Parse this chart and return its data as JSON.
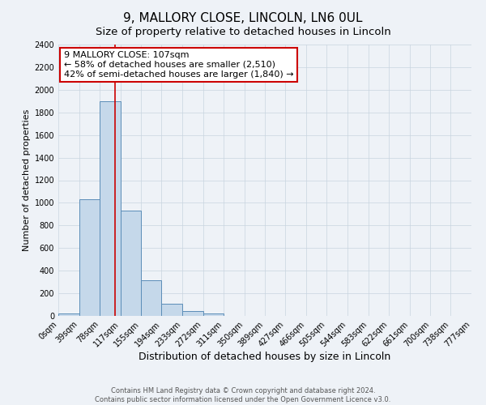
{
  "title": "9, MALLORY CLOSE, LINCOLN, LN6 0UL",
  "subtitle": "Size of property relative to detached houses in Lincoln",
  "xlabel": "Distribution of detached houses by size in Lincoln",
  "ylabel": "Number of detached properties",
  "footer_line1": "Contains HM Land Registry data © Crown copyright and database right 2024.",
  "footer_line2": "Contains public sector information licensed under the Open Government Licence v3.0.",
  "bin_edges": [
    0,
    39,
    78,
    117,
    155,
    194,
    233,
    272,
    311,
    350,
    389,
    427,
    466,
    505,
    544,
    583,
    622,
    661,
    700,
    738,
    777
  ],
  "bin_labels": [
    "0sqm",
    "39sqm",
    "78sqm",
    "117sqm",
    "155sqm",
    "194sqm",
    "233sqm",
    "272sqm",
    "311sqm",
    "350sqm",
    "389sqm",
    "427sqm",
    "466sqm",
    "505sqm",
    "544sqm",
    "583sqm",
    "622sqm",
    "661sqm",
    "700sqm",
    "738sqm",
    "777sqm"
  ],
  "bar_heights": [
    20,
    1030,
    1900,
    930,
    315,
    105,
    45,
    25,
    0,
    0,
    0,
    0,
    0,
    0,
    0,
    0,
    0,
    0,
    0,
    0
  ],
  "bar_color": "#c5d8ea",
  "bar_edge_color": "#5b8db8",
  "property_line_x": 107,
  "property_line_color": "#cc0000",
  "annotation_line1": "9 MALLORY CLOSE: 107sqm",
  "annotation_line2": "← 58% of detached houses are smaller (2,510)",
  "annotation_line3": "42% of semi-detached houses are larger (1,840) →",
  "annotation_box_color": "#ffffff",
  "annotation_box_edge": "#cc0000",
  "ylim": [
    0,
    2400
  ],
  "yticks": [
    0,
    200,
    400,
    600,
    800,
    1000,
    1200,
    1400,
    1600,
    1800,
    2000,
    2200,
    2400
  ],
  "grid_color": "#c8d4e0",
  "background_color": "#eef2f7",
  "title_fontsize": 11,
  "subtitle_fontsize": 9.5,
  "xlabel_fontsize": 9,
  "ylabel_fontsize": 8,
  "tick_fontsize": 7,
  "footer_fontsize": 6,
  "annotation_fontsize": 8
}
